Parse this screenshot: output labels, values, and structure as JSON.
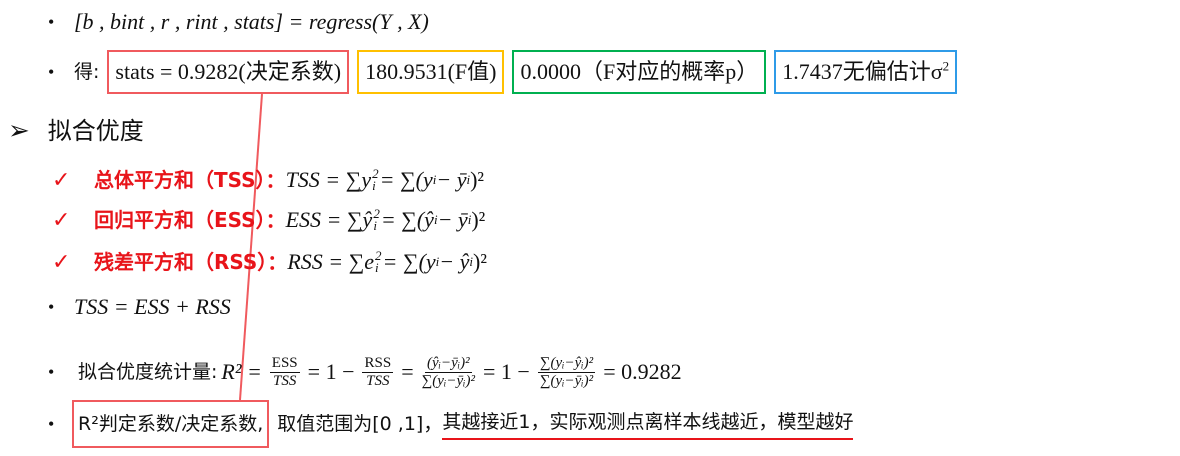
{
  "line1": {
    "formula": "[b , bint , r , rint , stats] = regress(Y , X)"
  },
  "line2": {
    "prefix": "得:",
    "stats": "stats = 0.9282(决定系数)",
    "f": "180.9531(F值)",
    "p": "0.0000（F对应的概率p）",
    "sigma_value": "1.7437无偏估计σ",
    "sigma_sup": "2"
  },
  "section": {
    "marker": "➢",
    "title": "拟合优度"
  },
  "checks": [
    {
      "label": "总体平方和（TSS）：",
      "formula": "TSS = ∑y",
      "sup": "2",
      "sub": "i",
      "rest": " = ∑(y",
      "rest_sub": "i",
      "rest2": " − ȳ",
      "rest2_sub": "i",
      "end": ")²"
    },
    {
      "label": "回归平方和（ESS）：",
      "formula": "ESS = ∑ŷ",
      "sup": "2",
      "sub": "i",
      "rest": " = ∑(ŷ",
      "rest_sub": "i",
      "rest2": " − ȳ",
      "rest2_sub": "i",
      "end": ")²"
    },
    {
      "label": "残差平方和（RSS）：",
      "formula": "RSS = ∑e",
      "sup": "2",
      "sub": "i",
      "rest": " = ∑(y",
      "rest_sub": "i",
      "rest2": " − ŷ",
      "rest2_sub": "i",
      "end": ")²"
    }
  ],
  "check_mark": "✓",
  "identity": "TSS = ESS + RSS",
  "goodness": {
    "label": "拟合优度统计量:",
    "lhs": "R² =",
    "f1n": "ESS",
    "f1d": "TSS",
    "eq1": "= 1 −",
    "f2n": "RSS",
    "f2d": "TSS",
    "eq2": "=",
    "f3n": "(ŷᵢ−ȳᵢ)²",
    "f3d": "∑(yᵢ−ȳᵢ)²",
    "eq3": "= 1 −",
    "f4n": "∑(yᵢ−ŷᵢ)²",
    "f4d": "∑(yᵢ−ȳᵢ)²",
    "result": "= 0.9282"
  },
  "last": {
    "boxed": "R²判定系数/决定系数,",
    "middle": "取值范围为[0 ,1]，",
    "underlined": "其越接近1，实际观测点离样本线越近，模型越好"
  },
  "colors": {
    "red": "#f05a5e",
    "yellow": "#ffc000",
    "green": "#00b050",
    "blue": "#2f9be8",
    "check": "#e8141a"
  }
}
